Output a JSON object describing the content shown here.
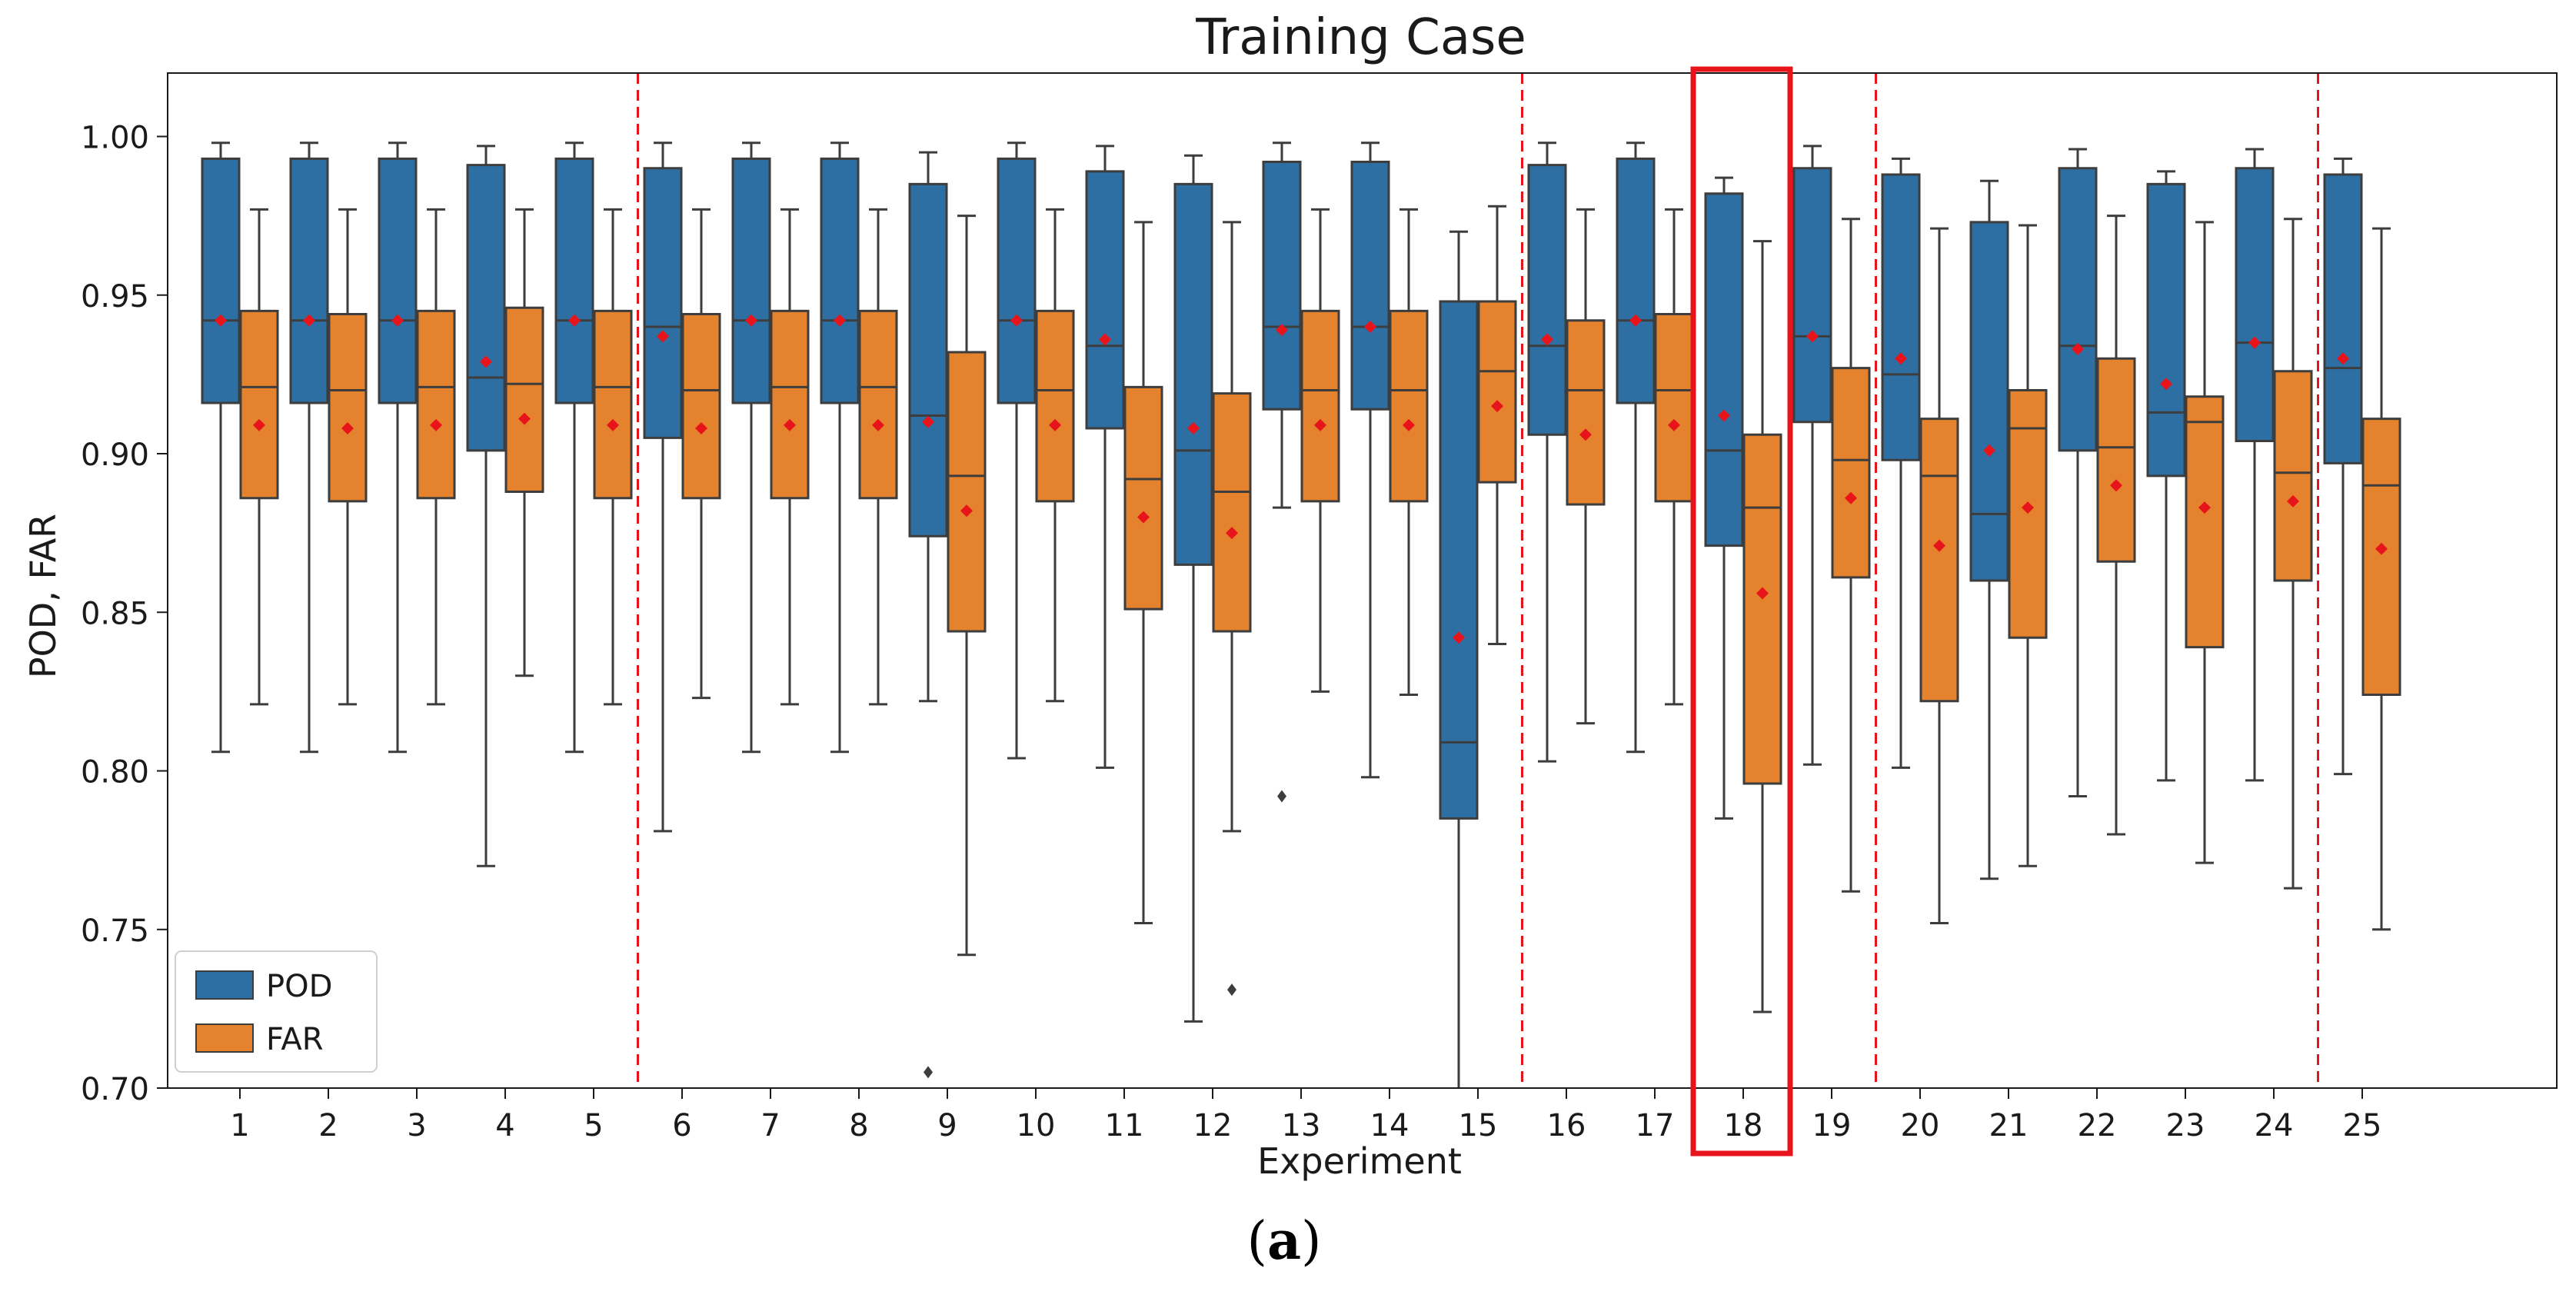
{
  "chart_data": {
    "type": "box",
    "title": "Training Case",
    "xlabel": "Experiment",
    "ylabel": "POD, FAR",
    "ylim": [
      0.7,
      1.02
    ],
    "yticks": [
      "0.70",
      "0.75",
      "0.80",
      "0.85",
      "0.90",
      "0.95",
      "1.00"
    ],
    "categories": [
      "1",
      "2",
      "3",
      "4",
      "5",
      "6",
      "7",
      "8",
      "9",
      "10",
      "11",
      "12",
      "13",
      "14",
      "15",
      "16",
      "17",
      "18",
      "19",
      "20",
      "21",
      "22",
      "23",
      "24",
      "25"
    ],
    "separators_after": [
      5,
      15,
      19,
      24
    ],
    "highlighted_category": "18",
    "legend_position": "lower-left",
    "grid": false,
    "series": [
      {
        "name": "POD",
        "color": "#2e6fa3",
        "boxes": [
          {
            "q1": 0.916,
            "median": 0.942,
            "q3": 0.993,
            "whislo": 0.806,
            "whishi": 0.998,
            "mean": 0.942,
            "fliers": []
          },
          {
            "q1": 0.916,
            "median": 0.942,
            "q3": 0.993,
            "whislo": 0.806,
            "whishi": 0.998,
            "mean": 0.942,
            "fliers": []
          },
          {
            "q1": 0.916,
            "median": 0.942,
            "q3": 0.993,
            "whislo": 0.806,
            "whishi": 0.998,
            "mean": 0.942,
            "fliers": []
          },
          {
            "q1": 0.901,
            "median": 0.924,
            "q3": 0.991,
            "whislo": 0.77,
            "whishi": 0.997,
            "mean": 0.929,
            "fliers": []
          },
          {
            "q1": 0.916,
            "median": 0.942,
            "q3": 0.993,
            "whislo": 0.806,
            "whishi": 0.998,
            "mean": 0.942,
            "fliers": []
          },
          {
            "q1": 0.905,
            "median": 0.94,
            "q3": 0.99,
            "whislo": 0.781,
            "whishi": 0.998,
            "mean": 0.937,
            "fliers": []
          },
          {
            "q1": 0.916,
            "median": 0.942,
            "q3": 0.993,
            "whislo": 0.806,
            "whishi": 0.998,
            "mean": 0.942,
            "fliers": []
          },
          {
            "q1": 0.916,
            "median": 0.942,
            "q3": 0.993,
            "whislo": 0.806,
            "whishi": 0.998,
            "mean": 0.942,
            "fliers": []
          },
          {
            "q1": 0.874,
            "median": 0.912,
            "q3": 0.985,
            "whislo": 0.822,
            "whishi": 0.995,
            "mean": 0.91,
            "fliers": [
              0.705
            ]
          },
          {
            "q1": 0.916,
            "median": 0.942,
            "q3": 0.993,
            "whislo": 0.804,
            "whishi": 0.998,
            "mean": 0.942,
            "fliers": []
          },
          {
            "q1": 0.908,
            "median": 0.934,
            "q3": 0.989,
            "whislo": 0.801,
            "whishi": 0.997,
            "mean": 0.936,
            "fliers": []
          },
          {
            "q1": 0.865,
            "median": 0.901,
            "q3": 0.985,
            "whislo": 0.721,
            "whishi": 0.994,
            "mean": 0.908,
            "fliers": []
          },
          {
            "q1": 0.914,
            "median": 0.94,
            "q3": 0.992,
            "whislo": 0.883,
            "whishi": 0.998,
            "mean": 0.939,
            "fliers": [
              0.792
            ]
          },
          {
            "q1": 0.914,
            "median": 0.94,
            "q3": 0.992,
            "whislo": 0.798,
            "whishi": 0.998,
            "mean": 0.94,
            "fliers": []
          },
          {
            "q1": 0.785,
            "median": 0.809,
            "q3": 0.948,
            "whislo": 0.7,
            "whishi": 0.97,
            "mean": 0.842,
            "fliers": []
          },
          {
            "q1": 0.906,
            "median": 0.934,
            "q3": 0.991,
            "whislo": 0.803,
            "whishi": 0.998,
            "mean": 0.936,
            "fliers": []
          },
          {
            "q1": 0.916,
            "median": 0.942,
            "q3": 0.993,
            "whislo": 0.806,
            "whishi": 0.998,
            "mean": 0.942,
            "fliers": []
          },
          {
            "q1": 0.871,
            "median": 0.901,
            "q3": 0.982,
            "whislo": 0.785,
            "whishi": 0.987,
            "mean": 0.912,
            "fliers": []
          },
          {
            "q1": 0.91,
            "median": 0.937,
            "q3": 0.99,
            "whislo": 0.802,
            "whishi": 0.997,
            "mean": 0.937,
            "fliers": []
          },
          {
            "q1": 0.898,
            "median": 0.925,
            "q3": 0.988,
            "whislo": 0.801,
            "whishi": 0.993,
            "mean": 0.93,
            "fliers": []
          },
          {
            "q1": 0.86,
            "median": 0.881,
            "q3": 0.973,
            "whislo": 0.766,
            "whishi": 0.986,
            "mean": 0.901,
            "fliers": []
          },
          {
            "q1": 0.901,
            "median": 0.934,
            "q3": 0.99,
            "whislo": 0.792,
            "whishi": 0.996,
            "mean": 0.933,
            "fliers": []
          },
          {
            "q1": 0.893,
            "median": 0.913,
            "q3": 0.985,
            "whislo": 0.797,
            "whishi": 0.989,
            "mean": 0.922,
            "fliers": []
          },
          {
            "q1": 0.904,
            "median": 0.935,
            "q3": 0.99,
            "whislo": 0.797,
            "whishi": 0.996,
            "mean": 0.935,
            "fliers": []
          },
          {
            "q1": 0.897,
            "median": 0.927,
            "q3": 0.988,
            "whislo": 0.799,
            "whishi": 0.993,
            "mean": 0.93,
            "fliers": []
          }
        ]
      },
      {
        "name": "FAR",
        "color": "#e5822d",
        "boxes": [
          {
            "q1": 0.886,
            "median": 0.921,
            "q3": 0.945,
            "whislo": 0.821,
            "whishi": 0.977,
            "mean": 0.909,
            "fliers": []
          },
          {
            "q1": 0.885,
            "median": 0.92,
            "q3": 0.944,
            "whislo": 0.821,
            "whishi": 0.977,
            "mean": 0.908,
            "fliers": []
          },
          {
            "q1": 0.886,
            "median": 0.921,
            "q3": 0.945,
            "whislo": 0.821,
            "whishi": 0.977,
            "mean": 0.909,
            "fliers": []
          },
          {
            "q1": 0.888,
            "median": 0.922,
            "q3": 0.946,
            "whislo": 0.83,
            "whishi": 0.977,
            "mean": 0.911,
            "fliers": []
          },
          {
            "q1": 0.886,
            "median": 0.921,
            "q3": 0.945,
            "whislo": 0.821,
            "whishi": 0.977,
            "mean": 0.909,
            "fliers": []
          },
          {
            "q1": 0.886,
            "median": 0.92,
            "q3": 0.944,
            "whislo": 0.823,
            "whishi": 0.977,
            "mean": 0.908,
            "fliers": []
          },
          {
            "q1": 0.886,
            "median": 0.921,
            "q3": 0.945,
            "whislo": 0.821,
            "whishi": 0.977,
            "mean": 0.909,
            "fliers": []
          },
          {
            "q1": 0.886,
            "median": 0.921,
            "q3": 0.945,
            "whislo": 0.821,
            "whishi": 0.977,
            "mean": 0.909,
            "fliers": []
          },
          {
            "q1": 0.844,
            "median": 0.893,
            "q3": 0.932,
            "whislo": 0.742,
            "whishi": 0.975,
            "mean": 0.882,
            "fliers": []
          },
          {
            "q1": 0.885,
            "median": 0.92,
            "q3": 0.945,
            "whislo": 0.822,
            "whishi": 0.977,
            "mean": 0.909,
            "fliers": []
          },
          {
            "q1": 0.851,
            "median": 0.892,
            "q3": 0.921,
            "whislo": 0.752,
            "whishi": 0.973,
            "mean": 0.88,
            "fliers": []
          },
          {
            "q1": 0.844,
            "median": 0.888,
            "q3": 0.919,
            "whislo": 0.781,
            "whishi": 0.973,
            "mean": 0.875,
            "fliers": [
              0.731
            ]
          },
          {
            "q1": 0.885,
            "median": 0.92,
            "q3": 0.945,
            "whislo": 0.825,
            "whishi": 0.977,
            "mean": 0.909,
            "fliers": []
          },
          {
            "q1": 0.885,
            "median": 0.92,
            "q3": 0.945,
            "whislo": 0.824,
            "whishi": 0.977,
            "mean": 0.909,
            "fliers": []
          },
          {
            "q1": 0.891,
            "median": 0.926,
            "q3": 0.948,
            "whislo": 0.84,
            "whishi": 0.978,
            "mean": 0.915,
            "fliers": []
          },
          {
            "q1": 0.884,
            "median": 0.92,
            "q3": 0.942,
            "whislo": 0.815,
            "whishi": 0.977,
            "mean": 0.906,
            "fliers": []
          },
          {
            "q1": 0.885,
            "median": 0.92,
            "q3": 0.944,
            "whislo": 0.821,
            "whishi": 0.977,
            "mean": 0.909,
            "fliers": []
          },
          {
            "q1": 0.796,
            "median": 0.883,
            "q3": 0.906,
            "whislo": 0.724,
            "whishi": 0.967,
            "mean": 0.856,
            "fliers": []
          },
          {
            "q1": 0.861,
            "median": 0.898,
            "q3": 0.927,
            "whislo": 0.762,
            "whishi": 0.974,
            "mean": 0.886,
            "fliers": []
          },
          {
            "q1": 0.822,
            "median": 0.893,
            "q3": 0.911,
            "whislo": 0.752,
            "whishi": 0.971,
            "mean": 0.871,
            "fliers": []
          },
          {
            "q1": 0.842,
            "median": 0.908,
            "q3": 0.92,
            "whislo": 0.77,
            "whishi": 0.972,
            "mean": 0.883,
            "fliers": []
          },
          {
            "q1": 0.866,
            "median": 0.902,
            "q3": 0.93,
            "whislo": 0.78,
            "whishi": 0.975,
            "mean": 0.89,
            "fliers": []
          },
          {
            "q1": 0.839,
            "median": 0.91,
            "q3": 0.918,
            "whislo": 0.771,
            "whishi": 0.973,
            "mean": 0.883,
            "fliers": []
          },
          {
            "q1": 0.86,
            "median": 0.894,
            "q3": 0.926,
            "whislo": 0.763,
            "whishi": 0.974,
            "mean": 0.885,
            "fliers": []
          },
          {
            "q1": 0.824,
            "median": 0.89,
            "q3": 0.911,
            "whislo": 0.75,
            "whishi": 0.971,
            "mean": 0.87,
            "fliers": []
          }
        ]
      }
    ]
  },
  "caption": {
    "open": "(",
    "letter": "a",
    "close": ")"
  },
  "colors": {
    "mean_marker": "#e8141b",
    "separator": "#e8141b",
    "highlight": "#e8141b",
    "whisker": "#3d3d3d"
  }
}
